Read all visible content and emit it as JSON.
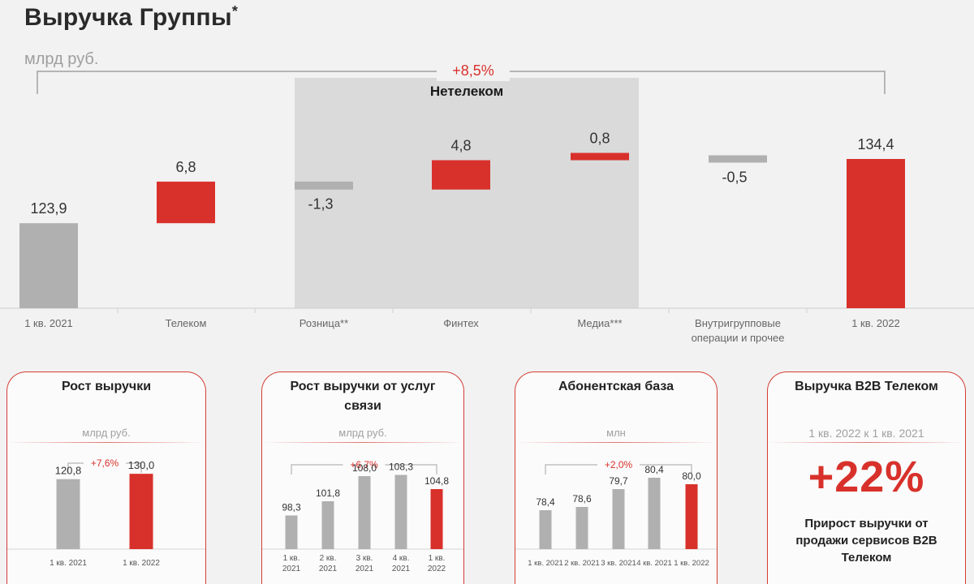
{
  "header": {
    "title": "Выручка Группы",
    "title_mark": "*",
    "unit": "млрд руб."
  },
  "colors": {
    "red": "#d8312b",
    "gray": "#b0b0b0",
    "shade": "#dadada"
  },
  "chart_data": [
    {
      "type": "bar",
      "subtype": "waterfall",
      "categories": [
        "1 кв. 2021",
        "Телеком",
        "Розница**",
        "Финтех",
        "Медиа***",
        "Внутригрупповые операции и прочее",
        "1 кв. 2022"
      ],
      "values": [
        123.9,
        6.8,
        -1.3,
        4.8,
        0.8,
        -0.5,
        134.4
      ],
      "value_labels": [
        "123,9",
        "6,8",
        "-1,3",
        "4,8",
        "0,8",
        "-0,5",
        "134,4"
      ],
      "kinds": [
        "total",
        "delta",
        "delta",
        "delta",
        "delta",
        "delta",
        "total"
      ],
      "bar_colors": [
        "gray",
        "red",
        "gray",
        "red",
        "red",
        "gray",
        "red"
      ],
      "highlight_group": {
        "label": "Нетелеком",
        "from": 2,
        "to": 4
      },
      "growth_label": "+8,5%",
      "ylim": [
        110,
        136
      ]
    },
    {
      "type": "bar",
      "title": "Рост выручки",
      "unit": "млрд руб.",
      "categories": [
        "1 кв. 2021",
        "1 кв. 2022"
      ],
      "values": [
        120.8,
        130.0
      ],
      "value_labels": [
        "120,8",
        "130,0"
      ],
      "bar_colors": [
        "gray",
        "red"
      ],
      "growth_label": "+7,6%",
      "ylim": [
        0,
        140
      ]
    },
    {
      "type": "bar",
      "title": "Рост выручки от услуг связи",
      "unit": "млрд руб.",
      "categories": [
        "1 кв. 2021",
        "2 кв. 2021",
        "3 кв. 2021",
        "4 кв. 2021",
        "1 кв. 2022"
      ],
      "values": [
        98.3,
        101.8,
        108.0,
        108.3,
        104.8
      ],
      "value_labels": [
        "98,3",
        "101,8",
        "108,0",
        "108,3",
        "104,8"
      ],
      "bar_colors": [
        "gray",
        "gray",
        "gray",
        "gray",
        "red"
      ],
      "growth_label": "+6,7%",
      "ylim": [
        90,
        110
      ]
    },
    {
      "type": "bar",
      "title": "Абонентская база",
      "unit": "млн",
      "categories": [
        "1 кв. 2021",
        "2 кв. 2021",
        "3 кв. 2021",
        "4 кв. 2021",
        "1 кв. 2022"
      ],
      "category_labels": [
        "1 кв. 2021",
        "2 кв. 2021",
        "3 кв. 2021",
        "4 кв. 2021",
        "1 кв. 2022"
      ],
      "values": [
        78.4,
        78.6,
        79.7,
        80.4,
        80.0
      ],
      "value_labels": [
        "78,4",
        "78,6",
        "79,7",
        "80,4",
        "80,0"
      ],
      "bar_colors": [
        "gray",
        "gray",
        "gray",
        "gray",
        "red"
      ],
      "growth_label": "+2,0%",
      "ylim": [
        76,
        81
      ]
    }
  ],
  "kpi_card": {
    "title": "Выручка B2B Телеком",
    "period": "1 кв. 2022 к 1 кв. 2021",
    "value": "+22%",
    "note": "Прирост выручки от продажи сервисов B2B Телеком"
  }
}
